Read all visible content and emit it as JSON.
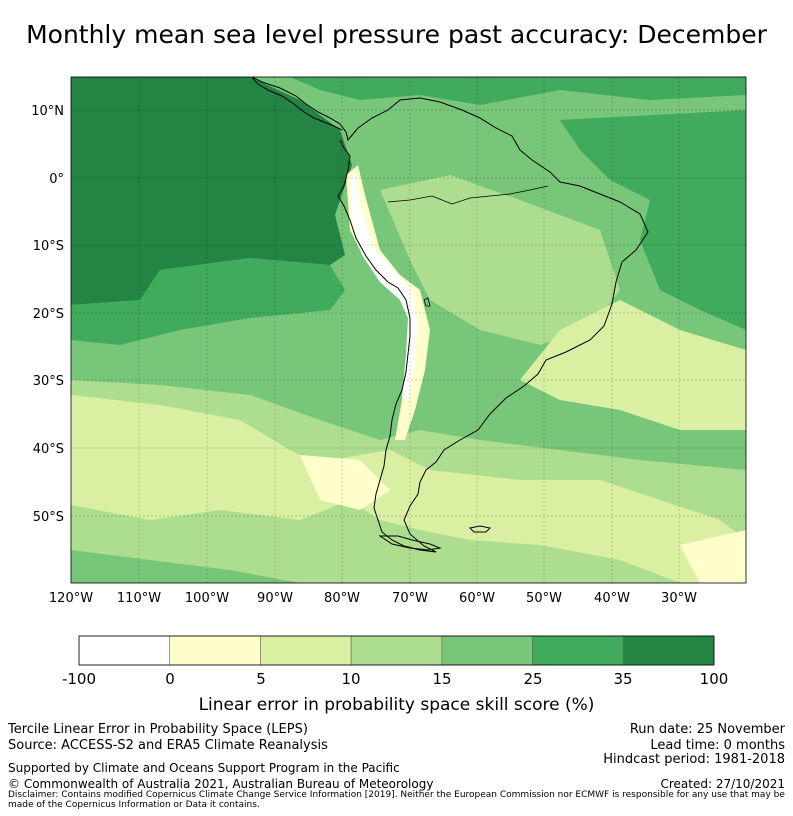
{
  "title": "Monthly mean sea level pressure past accuracy: December",
  "map": {
    "lat_labels": [
      "10°N",
      "0°",
      "10°S",
      "20°S",
      "30°S",
      "40°S",
      "50°S"
    ],
    "lon_labels": [
      "120°W",
      "110°W",
      "100°W",
      "90°W",
      "80°W",
      "70°W",
      "60°W",
      "50°W",
      "40°W",
      "30°W"
    ]
  },
  "colorbar": {
    "ticks": [
      "-100",
      "0",
      "5",
      "10",
      "15",
      "25",
      "35",
      "100"
    ],
    "colors": [
      "#ffffff",
      "#ffffcc",
      "#d9f0a3",
      "#addd8e",
      "#78c679",
      "#41ab5d",
      "#238443"
    ],
    "label": "Linear error in probability space skill score (%)"
  },
  "footer": {
    "method": "Tercile Linear Error in Probability Space (LEPS)",
    "source": "Source: ACCESS-S2 and ERA5 Climate Reanalysis",
    "run_date": "Run date: 25 November",
    "lead_time": "Lead time: 0 months",
    "hindcast": "Hindcast period: 1981-2018",
    "support": "Supported by Climate and Oceans Support Program in the Pacific",
    "copyright": "© Commonwealth of Australia 2021, Australian Bureau of Meteorology",
    "created": "Created: 27/10/2021",
    "disclaimer": "Disclaimer: Contains modified Copernicus Climate Change Service Information [2019]. Neither the European Commission nor ECMWF is responsible for any use that may be made of the Copernicus Information or Data it contains."
  }
}
